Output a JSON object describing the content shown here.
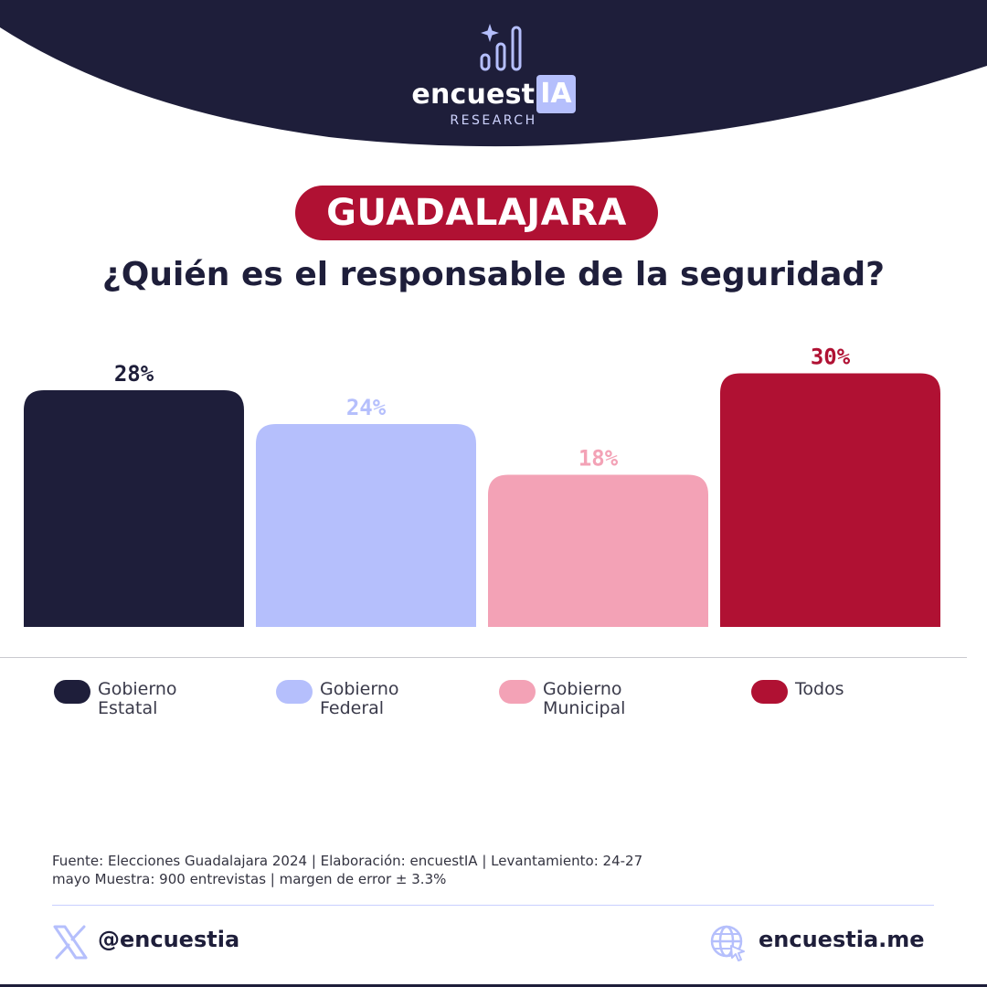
{
  "brand": {
    "name_prefix": "encuest",
    "name_suffix": "IA",
    "subtitle": "RESEARCH"
  },
  "city": "GUADALAJARA",
  "question": "¿Quién es el responsable de la seguridad?",
  "chart_data": {
    "type": "bar",
    "title": "¿Quién es el responsable de la seguridad?",
    "categories": [
      "Gobierno Estatal",
      "Gobierno Federal",
      "Gobierno Municipal",
      "Todos"
    ],
    "values": [
      28,
      24,
      18,
      30
    ],
    "value_labels": [
      "28%",
      "24%",
      "18%",
      "30%"
    ],
    "unit": "%",
    "colors": [
      "#1e1e3a",
      "#b5bffc",
      "#f3a2b6",
      "#b01133"
    ],
    "grid": false,
    "legend_position": "bottom"
  },
  "legend": [
    {
      "line1": "Gobierno",
      "line2": "Estatal",
      "color": "#1e1e3a"
    },
    {
      "line1": "Gobierno",
      "line2": "Federal",
      "color": "#b5bffc"
    },
    {
      "line1": "Gobierno",
      "line2": "Municipal",
      "color": "#f3a2b6"
    },
    {
      "line1": "Todos",
      "line2": "",
      "color": "#b01133"
    }
  ],
  "footer": {
    "source_line1": "Fuente: Elecciones Guadalajara 2024 | Elaboración: encuestIA | Levantamiento: 24-27",
    "source_line2": "mayo Muestra: 900 entrevistas | margen de error ± 3.3%",
    "social_handle": "@encuestia",
    "website": "encuestia.me"
  },
  "icons": {
    "logo": "sparkle-bar-chart-icon",
    "social": "x-logo-icon",
    "web": "globe-cursor-icon"
  },
  "colors": {
    "navy": "#1e1e3a",
    "crimson": "#b01133",
    "periwinkle": "#b5bffc",
    "pink": "#f3a2b6"
  }
}
